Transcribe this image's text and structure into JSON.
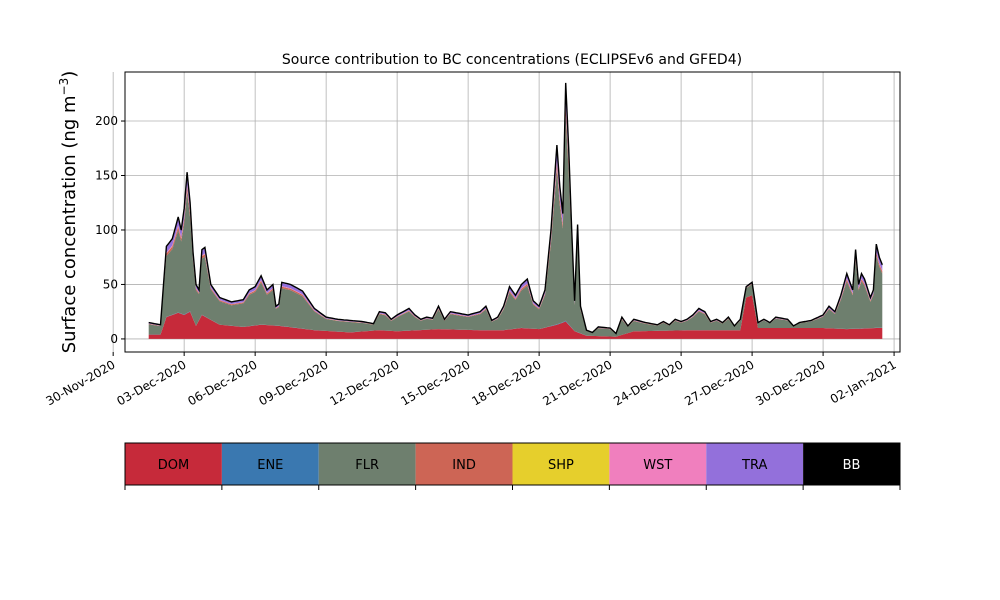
{
  "chart_data": {
    "type": "area",
    "stacked": true,
    "title": "Source contribution to BC concentrations (ECLIPSEv6 and GFED4)",
    "ylabel": "Surface concentration (ng m",
    "ylabel_sup": "−3",
    "ylabel_close": ")",
    "xlabel": "",
    "x_start": "2020-12-01T12:00",
    "x_end": "2021-01-01T12:00",
    "xlim": [
      "2020-11-30T12:00",
      "2021-01-02T06:00"
    ],
    "ylim": [
      -12,
      245
    ],
    "yticks": [
      0,
      50,
      100,
      150,
      200
    ],
    "xticks": [
      {
        "date": "2020-11-30",
        "label": "30-Nov-2020"
      },
      {
        "date": "2020-12-03",
        "label": "03-Dec-2020"
      },
      {
        "date": "2020-12-06",
        "label": "06-Dec-2020"
      },
      {
        "date": "2020-12-09",
        "label": "09-Dec-2020"
      },
      {
        "date": "2020-12-12",
        "label": "12-Dec-2020"
      },
      {
        "date": "2020-12-15",
        "label": "15-Dec-2020"
      },
      {
        "date": "2020-12-18",
        "label": "18-Dec-2020"
      },
      {
        "date": "2020-12-21",
        "label": "21-Dec-2020"
      },
      {
        "date": "2020-12-24",
        "label": "24-Dec-2020"
      },
      {
        "date": "2020-12-27",
        "label": "27-Dec-2020"
      },
      {
        "date": "2020-12-30",
        "label": "30-Dec-2020"
      },
      {
        "date": "2021-01-02",
        "label": "02-Jan-2021"
      }
    ],
    "grid": true,
    "total_knots": [
      [
        "2020-12-01T12:00",
        15
      ],
      [
        "2020-12-01T18:00",
        14
      ],
      [
        "2020-12-02T00:00",
        13
      ],
      [
        "2020-12-02T03:00",
        50
      ],
      [
        "2020-12-02T06:00",
        85
      ],
      [
        "2020-12-02T12:00",
        92
      ],
      [
        "2020-12-02T18:00",
        112
      ],
      [
        "2020-12-02T21:00",
        100
      ],
      [
        "2020-12-03T00:00",
        120
      ],
      [
        "2020-12-03T03:00",
        153
      ],
      [
        "2020-12-03T06:00",
        125
      ],
      [
        "2020-12-03T09:00",
        80
      ],
      [
        "2020-12-03T12:00",
        50
      ],
      [
        "2020-12-03T15:00",
        45
      ],
      [
        "2020-12-03T18:00",
        82
      ],
      [
        "2020-12-03T21:00",
        84
      ],
      [
        "2020-12-04T03:00",
        50
      ],
      [
        "2020-12-04T12:00",
        38
      ],
      [
        "2020-12-05T00:00",
        34
      ],
      [
        "2020-12-05T12:00",
        36
      ],
      [
        "2020-12-05T18:00",
        45
      ],
      [
        "2020-12-06T00:00",
        48
      ],
      [
        "2020-12-06T06:00",
        58
      ],
      [
        "2020-12-06T12:00",
        45
      ],
      [
        "2020-12-06T18:00",
        50
      ],
      [
        "2020-12-06T21:00",
        30
      ],
      [
        "2020-12-07T00:00",
        32
      ],
      [
        "2020-12-07T03:00",
        52
      ],
      [
        "2020-12-07T12:00",
        50
      ],
      [
        "2020-12-08T00:00",
        44
      ],
      [
        "2020-12-08T12:00",
        28
      ],
      [
        "2020-12-09T00:00",
        20
      ],
      [
        "2020-12-09T12:00",
        18
      ],
      [
        "2020-12-10T00:00",
        17
      ],
      [
        "2020-12-10T12:00",
        16
      ],
      [
        "2020-12-11T00:00",
        14
      ],
      [
        "2020-12-11T06:00",
        25
      ],
      [
        "2020-12-11T12:00",
        24
      ],
      [
        "2020-12-11T18:00",
        18
      ],
      [
        "2020-12-12T00:00",
        22
      ],
      [
        "2020-12-12T12:00",
        28
      ],
      [
        "2020-12-12T18:00",
        22
      ],
      [
        "2020-12-13T00:00",
        18
      ],
      [
        "2020-12-13T06:00",
        20
      ],
      [
        "2020-12-13T12:00",
        19
      ],
      [
        "2020-12-13T18:00",
        30
      ],
      [
        "2020-12-14T00:00",
        18
      ],
      [
        "2020-12-14T06:00",
        25
      ],
      [
        "2020-12-14T12:00",
        24
      ],
      [
        "2020-12-15T00:00",
        22
      ],
      [
        "2020-12-15T12:00",
        25
      ],
      [
        "2020-12-15T18:00",
        30
      ],
      [
        "2020-12-16T00:00",
        17
      ],
      [
        "2020-12-16T06:00",
        20
      ],
      [
        "2020-12-16T12:00",
        30
      ],
      [
        "2020-12-16T18:00",
        48
      ],
      [
        "2020-12-17T00:00",
        40
      ],
      [
        "2020-12-17T06:00",
        50
      ],
      [
        "2020-12-17T12:00",
        55
      ],
      [
        "2020-12-17T18:00",
        35
      ],
      [
        "2020-12-18T00:00",
        30
      ],
      [
        "2020-12-18T06:00",
        45
      ],
      [
        "2020-12-18T12:00",
        100
      ],
      [
        "2020-12-18T18:00",
        178
      ],
      [
        "2020-12-18T21:00",
        140
      ],
      [
        "2020-12-19T00:00",
        115
      ],
      [
        "2020-12-19T03:00",
        235
      ],
      [
        "2020-12-19T06:00",
        175
      ],
      [
        "2020-12-19T09:00",
        100
      ],
      [
        "2020-12-19T12:00",
        35
      ],
      [
        "2020-12-19T15:00",
        105
      ],
      [
        "2020-12-19T18:00",
        30
      ],
      [
        "2020-12-20T00:00",
        8
      ],
      [
        "2020-12-20T06:00",
        6
      ],
      [
        "2020-12-20T12:00",
        11
      ],
      [
        "2020-12-21T00:00",
        10
      ],
      [
        "2020-12-21T06:00",
        5
      ],
      [
        "2020-12-21T12:00",
        20
      ],
      [
        "2020-12-21T18:00",
        12
      ],
      [
        "2020-12-22T00:00",
        18
      ],
      [
        "2020-12-22T12:00",
        15
      ],
      [
        "2020-12-23T00:00",
        13
      ],
      [
        "2020-12-23T06:00",
        16
      ],
      [
        "2020-12-23T12:00",
        13
      ],
      [
        "2020-12-23T18:00",
        18
      ],
      [
        "2020-12-24T00:00",
        16
      ],
      [
        "2020-12-24T06:00",
        18
      ],
      [
        "2020-12-24T12:00",
        22
      ],
      [
        "2020-12-24T18:00",
        28
      ],
      [
        "2020-12-25T00:00",
        25
      ],
      [
        "2020-12-25T06:00",
        16
      ],
      [
        "2020-12-25T12:00",
        18
      ],
      [
        "2020-12-25T18:00",
        15
      ],
      [
        "2020-12-26T00:00",
        20
      ],
      [
        "2020-12-26T06:00",
        12
      ],
      [
        "2020-12-26T12:00",
        18
      ],
      [
        "2020-12-26T18:00",
        48
      ],
      [
        "2020-12-27T00:00",
        52
      ],
      [
        "2020-12-27T06:00",
        15
      ],
      [
        "2020-12-27T12:00",
        18
      ],
      [
        "2020-12-27T18:00",
        15
      ],
      [
        "2020-12-28T00:00",
        20
      ],
      [
        "2020-12-28T12:00",
        18
      ],
      [
        "2020-12-28T18:00",
        12
      ],
      [
        "2020-12-29T00:00",
        15
      ],
      [
        "2020-12-29T12:00",
        17
      ],
      [
        "2020-12-30T00:00",
        22
      ],
      [
        "2020-12-30T06:00",
        30
      ],
      [
        "2020-12-30T12:00",
        25
      ],
      [
        "2020-12-30T18:00",
        40
      ],
      [
        "2020-12-31T00:00",
        60
      ],
      [
        "2020-12-31T06:00",
        45
      ],
      [
        "2020-12-31T09:00",
        82
      ],
      [
        "2020-12-31T12:00",
        50
      ],
      [
        "2020-12-31T15:00",
        60
      ],
      [
        "2020-12-31T18:00",
        55
      ],
      [
        "2021-01-01T00:00",
        38
      ],
      [
        "2021-01-01T03:00",
        45
      ],
      [
        "2021-01-01T06:00",
        87
      ],
      [
        "2021-01-01T09:00",
        75
      ],
      [
        "2021-01-01T12:00",
        68
      ]
    ],
    "dom_knots": [
      [
        "2020-12-01T12:00",
        4
      ],
      [
        "2020-12-02T00:00",
        4
      ],
      [
        "2020-12-02T06:00",
        20
      ],
      [
        "2020-12-02T18:00",
        24
      ],
      [
        "2020-12-03T00:00",
        22
      ],
      [
        "2020-12-03T06:00",
        25
      ],
      [
        "2020-12-03T12:00",
        12
      ],
      [
        "2020-12-03T18:00",
        22
      ],
      [
        "2020-12-04T12:00",
        13
      ],
      [
        "2020-12-05T12:00",
        11
      ],
      [
        "2020-12-06T06:00",
        13
      ],
      [
        "2020-12-07T00:00",
        12
      ],
      [
        "2020-12-08T12:00",
        8
      ],
      [
        "2020-12-10T00:00",
        6
      ],
      [
        "2020-12-11T06:00",
        8
      ],
      [
        "2020-12-12T00:00",
        7
      ],
      [
        "2020-12-13T18:00",
        9
      ],
      [
        "2020-12-15T12:00",
        8
      ],
      [
        "2020-12-16T12:00",
        8
      ],
      [
        "2020-12-17T06:00",
        10
      ],
      [
        "2020-12-18T00:00",
        9
      ],
      [
        "2020-12-18T18:00",
        13
      ],
      [
        "2020-12-19T03:00",
        16
      ],
      [
        "2020-12-19T12:00",
        7
      ],
      [
        "2020-12-20T00:00",
        3
      ],
      [
        "2020-12-21T06:00",
        2
      ],
      [
        "2020-12-22T00:00",
        7
      ],
      [
        "2020-12-24T12:00",
        8
      ],
      [
        "2020-12-26T12:00",
        8
      ],
      [
        "2020-12-26T18:00",
        38
      ],
      [
        "2020-12-27T00:00",
        40
      ],
      [
        "2020-12-27T06:00",
        10
      ],
      [
        "2020-12-28T12:00",
        10
      ],
      [
        "2020-12-30T00:00",
        10
      ],
      [
        "2020-12-31T00:00",
        9
      ],
      [
        "2021-01-01T06:00",
        10
      ],
      [
        "2021-01-01T12:00",
        10
      ]
    ],
    "layers": [
      {
        "name": "DOM",
        "color": "#c62a3a",
        "share": 0
      },
      {
        "name": "ENE",
        "color": "#3a78b0",
        "share": 0.003
      },
      {
        "name": "FLR",
        "color": "#6e7f6e",
        "share": 0.86
      },
      {
        "name": "IND",
        "color": "#cd6555",
        "share": 0.035
      },
      {
        "name": "SHP",
        "color": "#e6cf2c",
        "share": 0.002
      },
      {
        "name": "WST",
        "color": "#f07fbe",
        "share": 0.012
      },
      {
        "name": "TRA",
        "color": "#9370db",
        "share": 0.075
      },
      {
        "name": "BB",
        "color": "#000000",
        "share": 0.013
      }
    ],
    "legend": {
      "placement": "bottom",
      "items": [
        {
          "label": "DOM",
          "color": "#c62a3a",
          "text_color": "#000000"
        },
        {
          "label": "ENE",
          "color": "#3a78b0",
          "text_color": "#000000"
        },
        {
          "label": "FLR",
          "color": "#6e7f6e",
          "text_color": "#000000"
        },
        {
          "label": "IND",
          "color": "#cd6555",
          "text_color": "#000000"
        },
        {
          "label": "SHP",
          "color": "#e6cf2c",
          "text_color": "#000000"
        },
        {
          "label": "WST",
          "color": "#f07fbe",
          "text_color": "#000000"
        },
        {
          "label": "TRA",
          "color": "#9370db",
          "text_color": "#000000"
        },
        {
          "label": "BB",
          "color": "#000000",
          "text_color": "#ffffff"
        }
      ]
    }
  }
}
